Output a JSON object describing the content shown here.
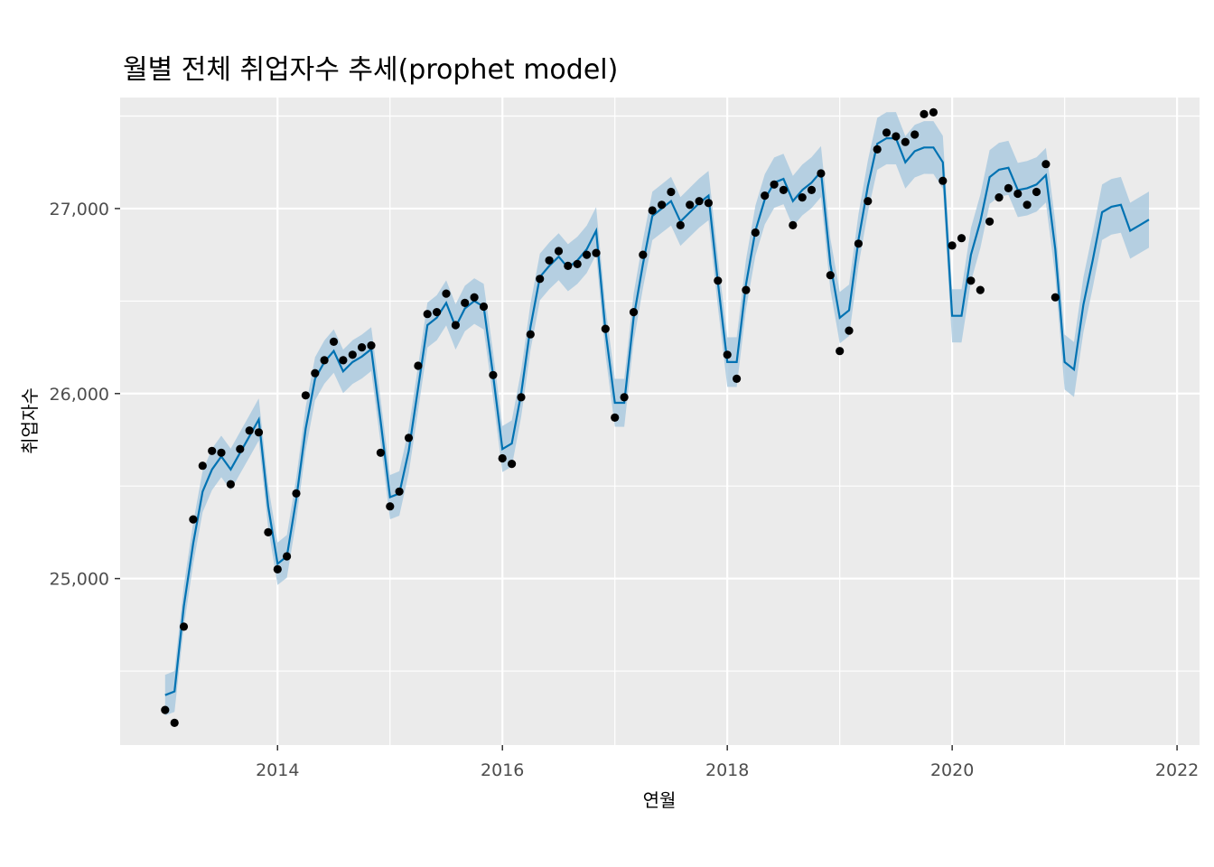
{
  "chart_data": {
    "type": "line",
    "title": "월별 전체 취업자수 추세(prophet model)",
    "xlabel": "연월",
    "ylabel": "취업자수",
    "x_ticks": [
      2014,
      2016,
      2018,
      2020,
      2022
    ],
    "y_ticks": [
      "25,000",
      "26,000",
      "27,000"
    ],
    "xlim": [
      2012.6,
      2022.2
    ],
    "ylim": [
      24100,
      27600
    ],
    "grid": true,
    "colors": {
      "panel_bg": "#ebebeb",
      "grid": "#ffffff",
      "forecast_line": "#0072b2",
      "interval_band": "#a8c8df",
      "points": "#000000"
    },
    "series": [
      {
        "kind": "actual",
        "start": "2013-01",
        "values": [
          24290,
          24220,
          24740,
          25320,
          25610,
          25690,
          25680,
          25510,
          25700,
          25800,
          25790,
          25250,
          25050,
          25120,
          25460,
          25990,
          26110,
          26180,
          26280,
          26180,
          26210,
          26250,
          26260,
          25680,
          25390,
          25470,
          25760,
          26150,
          26430,
          26440,
          26540,
          26370,
          26490,
          26520,
          26470,
          26100,
          25650,
          25620,
          25980,
          26320,
          26620,
          26720,
          26770,
          26690,
          26700,
          26750,
          26760,
          26350,
          25870,
          25980,
          26440,
          26750,
          26990,
          27020,
          27090,
          26910,
          27020,
          27040,
          27030,
          26610,
          26210,
          26080,
          26560,
          26870,
          27070,
          27130,
          27100,
          26910,
          27060,
          27100,
          27190,
          26640,
          26230,
          26340,
          26810,
          27040,
          27320,
          27410,
          27390,
          27360,
          27400,
          27510,
          27520,
          27150,
          26800,
          26840,
          26610,
          26560,
          26930,
          27060,
          27110,
          27080,
          27020,
          27090,
          27240,
          26520
        ]
      },
      {
        "kind": "forecast",
        "start": "2013-01",
        "values": [
          24370,
          24390,
          24850,
          25190,
          25470,
          25590,
          25660,
          25590,
          25680,
          25770,
          25860,
          25390,
          25080,
          25120,
          25430,
          25810,
          26080,
          26170,
          26230,
          26120,
          26170,
          26200,
          26240,
          25850,
          25440,
          25460,
          25690,
          26030,
          26370,
          26410,
          26490,
          26360,
          26460,
          26500,
          26470,
          26100,
          25700,
          25730,
          26000,
          26360,
          26630,
          26690,
          26740,
          26680,
          26720,
          26780,
          26880,
          26340,
          25950,
          25950,
          26410,
          26700,
          26960,
          27000,
          27040,
          26930,
          26980,
          27030,
          27070,
          26600,
          26170,
          26170,
          26590,
          26880,
          27050,
          27140,
          27160,
          27040,
          27100,
          27140,
          27200,
          26700,
          26410,
          26450,
          26830,
          27120,
          27350,
          27380,
          27380,
          27250,
          27310,
          27330,
          27330,
          27250,
          26420,
          26420,
          26750,
          26930,
          27170,
          27210,
          27220,
          27100,
          27110,
          27130,
          27180,
          26780,
          26170,
          26130,
          26480,
          26720,
          26980,
          27010,
          27020,
          26880,
          26910,
          26940
        ]
      }
    ]
  }
}
